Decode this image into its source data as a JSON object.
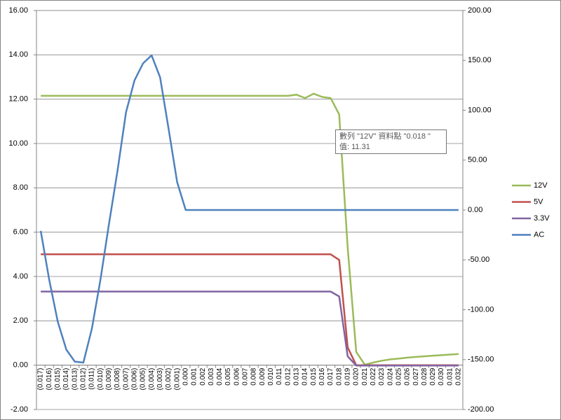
{
  "chart_data": {
    "type": "line",
    "categories": [
      "(0.017)",
      "(0.016)",
      "(0.015)",
      "(0.014)",
      "(0.013)",
      "(0.012)",
      "(0.011)",
      "(0.010)",
      "(0.009)",
      "(0.008)",
      "(0.007)",
      "(0.006)",
      "(0.005)",
      "(0.004)",
      "(0.003)",
      "(0.002)",
      "(0.001)",
      "0.000",
      "0.001",
      "0.002",
      "0.003",
      "0.004",
      "0.005",
      "0.006",
      "0.007",
      "0.008",
      "0.009",
      "0.010",
      "0.011",
      "0.012",
      "0.013",
      "0.014",
      "0.015",
      "0.016",
      "0.017",
      "0.018",
      "0.019",
      "0.020",
      "0.021",
      "0.022",
      "0.023",
      "0.024",
      "0.025",
      "0.026",
      "0.027",
      "0.028",
      "0.029",
      "0.030",
      "0.031",
      "0.032"
    ],
    "series": [
      {
        "name": "12V",
        "color": "#9bbb59",
        "values": [
          12.15,
          12.15,
          12.15,
          12.15,
          12.15,
          12.15,
          12.15,
          12.15,
          12.15,
          12.15,
          12.15,
          12.15,
          12.15,
          12.15,
          12.15,
          12.15,
          12.15,
          12.15,
          12.15,
          12.15,
          12.15,
          12.15,
          12.15,
          12.15,
          12.15,
          12.15,
          12.15,
          12.15,
          12.15,
          12.15,
          12.2,
          12.05,
          12.25,
          12.1,
          12.05,
          11.31,
          5.3,
          0.6,
          0.02,
          0.12,
          0.2,
          0.26,
          0.3,
          0.34,
          0.37,
          0.4,
          0.43,
          0.45,
          0.48,
          0.5
        ]
      },
      {
        "name": "5V",
        "color": "#c0504d",
        "values": [
          5,
          5,
          5,
          5,
          5,
          5,
          5,
          5,
          5,
          5,
          5,
          5,
          5,
          5,
          5,
          5,
          5,
          5,
          5,
          5,
          5,
          5,
          5,
          5,
          5,
          5,
          5,
          5,
          5,
          5,
          5,
          5,
          5,
          5,
          5,
          4.75,
          0.8,
          0,
          0,
          0,
          0,
          0,
          0,
          0,
          0,
          0,
          0,
          0,
          0,
          0
        ]
      },
      {
        "name": "3.3V",
        "color": "#8064a2",
        "values": [
          3.32,
          3.32,
          3.32,
          3.32,
          3.32,
          3.32,
          3.32,
          3.32,
          3.32,
          3.32,
          3.32,
          3.32,
          3.32,
          3.32,
          3.32,
          3.32,
          3.32,
          3.32,
          3.32,
          3.32,
          3.32,
          3.32,
          3.32,
          3.32,
          3.32,
          3.32,
          3.32,
          3.32,
          3.32,
          3.32,
          3.32,
          3.32,
          3.32,
          3.32,
          3.32,
          3.1,
          0.4,
          -0.02,
          -0.02,
          -0.02,
          -0.02,
          -0.02,
          -0.02,
          -0.02,
          -0.02,
          -0.02,
          -0.02,
          -0.02,
          -0.02,
          -0.02
        ]
      },
      {
        "name": "AC",
        "color": "#4f81bd",
        "axis": "y2",
        "values": [
          -21,
          -70,
          -112,
          -140,
          -152,
          -153,
          -119,
          -70,
          -14,
          39,
          98,
          130,
          147,
          155,
          133,
          81,
          28,
          0,
          0,
          0,
          0,
          0,
          0,
          0,
          0,
          0,
          0,
          0,
          0,
          0,
          0,
          0,
          0,
          0,
          0,
          0,
          0,
          0,
          0,
          0,
          0,
          0,
          0,
          0,
          0,
          0,
          0,
          0,
          0,
          0
        ]
      }
    ],
    "ylim": [
      -2,
      16
    ],
    "yticks": [
      {
        "value": -2,
        "label": "-2.00"
      },
      {
        "value": 0,
        "label": "0.00"
      },
      {
        "value": 2,
        "label": "2.00"
      },
      {
        "value": 4,
        "label": "4.00"
      },
      {
        "value": 6,
        "label": "6.00"
      },
      {
        "value": 8,
        "label": "8.00"
      },
      {
        "value": 10,
        "label": "10.00"
      },
      {
        "value": 12,
        "label": "12.00"
      },
      {
        "value": 14,
        "label": "14.00"
      },
      {
        "value": 16,
        "label": "16.00"
      }
    ],
    "y2lim": [
      -200,
      200
    ],
    "y2ticks": [
      {
        "value": -200,
        "label": "-200.00"
      },
      {
        "value": -150,
        "label": "-150.00"
      },
      {
        "value": -100,
        "label": "-100.00"
      },
      {
        "value": -50,
        "label": "-50.00"
      },
      {
        "value": 0,
        "label": "0.00"
      },
      {
        "value": 50,
        "label": "50.00"
      },
      {
        "value": 100,
        "label": "100.00"
      },
      {
        "value": 150,
        "label": "150.00"
      },
      {
        "value": 200,
        "label": "200.00"
      }
    ],
    "grid": true,
    "legend": "right",
    "tooltip": {
      "lines": [
        "數列 \"12V\" 資料點 \"0.018 \"",
        "值: 11.31"
      ]
    }
  }
}
